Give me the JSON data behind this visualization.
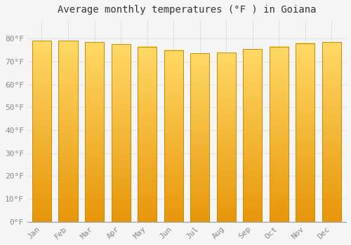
{
  "title": "Average monthly temperatures (°F ) in Goiana",
  "months": [
    "Jan",
    "Feb",
    "Mar",
    "Apr",
    "May",
    "Jun",
    "Jul",
    "Aug",
    "Sep",
    "Oct",
    "Nov",
    "Dec"
  ],
  "values": [
    79.0,
    79.0,
    78.5,
    77.5,
    76.5,
    75.0,
    73.5,
    74.0,
    75.5,
    76.5,
    78.0,
    78.5
  ],
  "bar_color_bottom": "#E8960A",
  "bar_color_top": "#FFD966",
  "bar_edge_color": "#CC8800",
  "ylim": [
    0,
    88
  ],
  "yticks": [
    0,
    10,
    20,
    30,
    40,
    50,
    60,
    70,
    80
  ],
  "ytick_labels": [
    "0°F",
    "10°F",
    "20°F",
    "30°F",
    "40°F",
    "50°F",
    "60°F",
    "70°F",
    "80°F"
  ],
  "background_color": "#F5F5F5",
  "grid_color": "#DDDDDD",
  "title_fontsize": 10,
  "tick_fontsize": 8,
  "tick_color": "#888888",
  "bar_width": 0.72,
  "figsize": [
    5.0,
    3.5
  ],
  "dpi": 100
}
